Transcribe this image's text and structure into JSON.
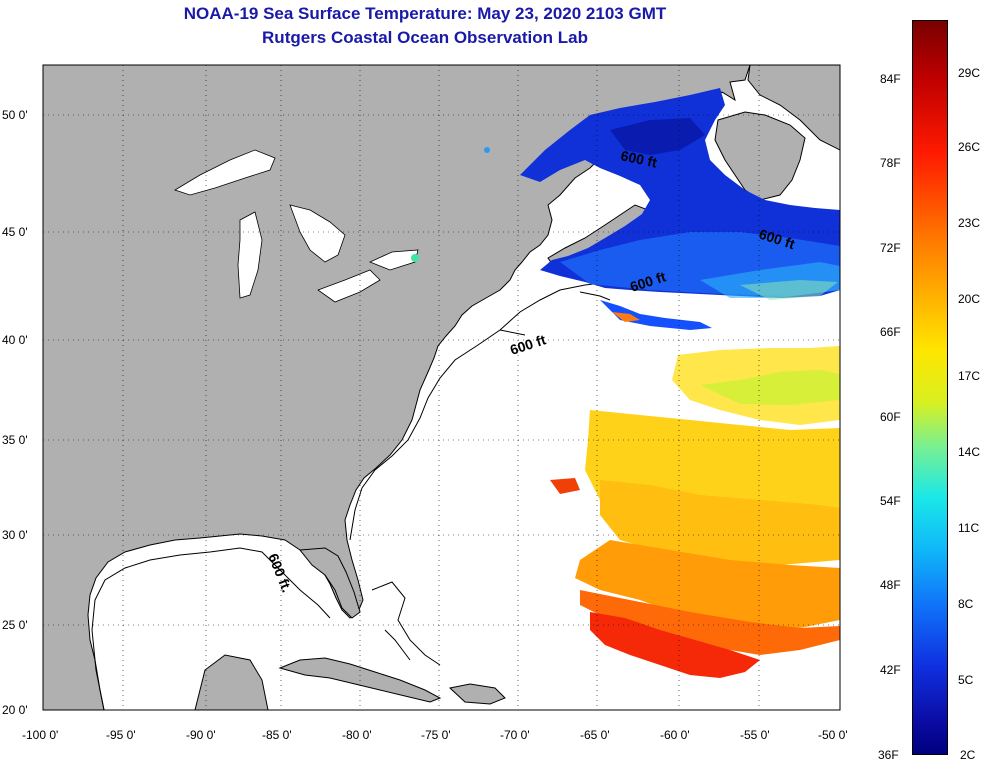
{
  "title": {
    "line1": "NOAA-19 Sea Surface Temperature:  May 23, 2020 2103 GMT",
    "line2": "Rutgers Coastal Ocean Observation Lab"
  },
  "map": {
    "lon_range": [
      -100,
      -50
    ],
    "lat_range": [
      20,
      52.5
    ],
    "lon_ticks": [
      "-100 0'",
      "-95 0'",
      "-90 0'",
      "-85 0'",
      "-80 0'",
      "-75 0'",
      "-70 0'",
      "-65 0'",
      "-60 0'",
      "-55 0'",
      "-50 0'"
    ],
    "lat_ticks": [
      "50 0'",
      "45 0'",
      "40 0'",
      "35 0'",
      "30 0'",
      "25 0'",
      "20 0'"
    ],
    "contour_labels": [
      "600 ft",
      "600 ft",
      "600 ft",
      "600 ft",
      "600 ft."
    ],
    "colors": {
      "land": "#b0b0b0",
      "ocean": "#ffffff",
      "coast": "#000000",
      "grid": "#000000"
    }
  },
  "colorbar": {
    "fahrenheit_labels": [
      "84F",
      "78F",
      "72F",
      "66F",
      "60F",
      "54F",
      "48F",
      "42F",
      "36F"
    ],
    "celsius_labels": [
      "29C",
      "26C",
      "23C",
      "20C",
      "17C",
      "14C",
      "11C",
      "8C",
      "5C",
      "2C"
    ],
    "range_f": [
      36,
      88
    ]
  }
}
